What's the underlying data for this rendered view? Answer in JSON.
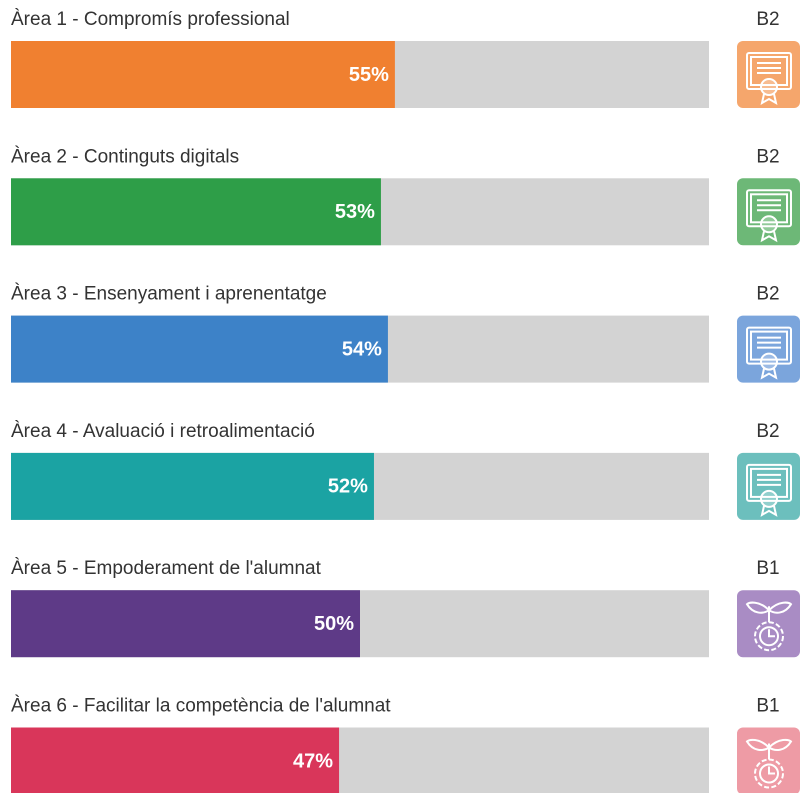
{
  "chart_data": {
    "type": "bar",
    "orientation": "horizontal",
    "categories": [
      "Àrea 1 - Compromís professional",
      "Àrea 2 - Continguts digitals",
      "Àrea 3 - Ensenyament i aprenentatge",
      "Àrea 4 - Avaluació i retroalimentació",
      "Àrea 5 - Empoderament de l'alumnat",
      "Àrea 6 - Facilitar la competència de l'alumnat"
    ],
    "values": [
      55,
      53,
      54,
      52,
      50,
      47
    ],
    "value_labels": [
      "55%",
      "53%",
      "54%",
      "52%",
      "50%",
      "47%"
    ],
    "levels": [
      "B2",
      "B2",
      "B2",
      "B2",
      "B1",
      "B1"
    ],
    "colors": [
      "#f08030",
      "#2e9e48",
      "#3d82c8",
      "#1ba3a3",
      "#5e3a87",
      "#d9365a"
    ],
    "badge_colors": [
      "#f5a66c",
      "#6db877",
      "#7ba5dc",
      "#6cbfbd",
      "#a98cc4",
      "#ee9ba5"
    ],
    "track_color": "#d3d3d3",
    "xlim": [
      0,
      100
    ]
  }
}
